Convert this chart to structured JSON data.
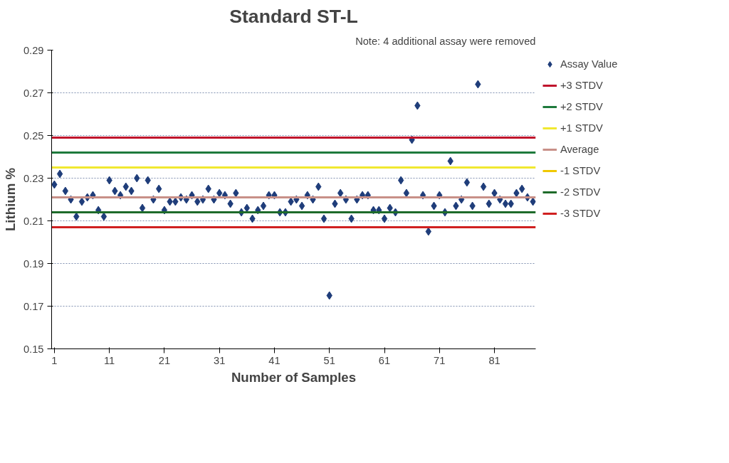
{
  "chart_data": {
    "type": "scatter",
    "title": "Standard ST-L",
    "xlabel": "Number of Samples",
    "ylabel": "Lithium %",
    "annotations": [
      "Note: 4 additional assay were removed"
    ],
    "x": [
      1,
      2,
      3,
      4,
      5,
      6,
      7,
      8,
      9,
      10,
      11,
      12,
      13,
      14,
      15,
      16,
      17,
      18,
      19,
      20,
      21,
      22,
      23,
      24,
      25,
      26,
      27,
      28,
      29,
      30,
      31,
      32,
      33,
      34,
      35,
      36,
      37,
      38,
      39,
      40,
      41,
      42,
      43,
      44,
      45,
      46,
      47,
      48,
      49,
      50,
      51,
      52,
      53,
      54,
      55,
      56,
      57,
      58,
      59,
      60,
      61,
      62,
      63,
      64,
      65,
      66,
      67,
      68,
      69,
      70,
      71,
      72,
      73,
      74,
      75,
      76,
      77,
      78,
      79,
      80,
      81,
      82,
      83,
      84,
      85,
      86,
      87,
      88
    ],
    "xlim": [
      0.5,
      88.5
    ],
    "xticks": [
      1,
      11,
      21,
      31,
      41,
      51,
      61,
      71,
      81
    ],
    "ylim": [
      0.15,
      0.29
    ],
    "yticks": [
      0.15,
      0.17,
      0.19,
      0.21,
      0.23,
      0.25,
      0.27,
      0.29
    ],
    "grid": "y",
    "legend": "right",
    "marker": "diamond",
    "series": [
      {
        "name": "Assay Value",
        "color": "#1f3d7a",
        "values": [
          0.227,
          0.232,
          0.224,
          0.22,
          0.212,
          0.219,
          0.221,
          0.222,
          0.215,
          0.212,
          0.229,
          0.224,
          0.222,
          0.226,
          0.224,
          0.23,
          0.216,
          0.229,
          0.22,
          0.225,
          0.215,
          0.219,
          0.219,
          0.221,
          0.22,
          0.222,
          0.219,
          0.22,
          0.225,
          0.22,
          0.223,
          0.222,
          0.218,
          0.223,
          0.214,
          0.216,
          0.211,
          0.215,
          0.217,
          0.222,
          0.222,
          0.214,
          0.214,
          0.219,
          0.22,
          0.217,
          0.222,
          0.22,
          0.226,
          0.211,
          0.175,
          0.218,
          0.223,
          0.22,
          0.211,
          0.22,
          0.222,
          0.222,
          0.215,
          0.215,
          0.211,
          0.216,
          0.214,
          0.229,
          0.223,
          0.248,
          0.264,
          0.222,
          0.205,
          0.217,
          0.222,
          0.214,
          0.238,
          0.217,
          0.22,
          0.228,
          0.217,
          0.274,
          0.226,
          0.218,
          0.223,
          0.22,
          0.218,
          0.218,
          0.223,
          0.225,
          0.221,
          0.219
        ]
      }
    ],
    "ref_lines": [
      {
        "axis": "y",
        "value": 0.249,
        "label": "+3 STDV",
        "color": "#c0142c"
      },
      {
        "axis": "y",
        "value": 0.242,
        "label": "+2 STDV",
        "color": "#1e7a3c"
      },
      {
        "axis": "y",
        "value": 0.235,
        "label": "+1 STDV",
        "color": "#f0e830"
      },
      {
        "axis": "y",
        "value": 0.221,
        "label": "Average",
        "color": "#c89088"
      },
      {
        "axis": "y",
        "value": null,
        "label": "-1 STDV",
        "color": "#f0c800"
      },
      {
        "axis": "y",
        "value": 0.214,
        "label": "-2 STDV",
        "color": "#1e6b2a"
      },
      {
        "axis": "y",
        "value": 0.207,
        "label": "-3 STDV",
        "color": "#d02020"
      }
    ]
  }
}
